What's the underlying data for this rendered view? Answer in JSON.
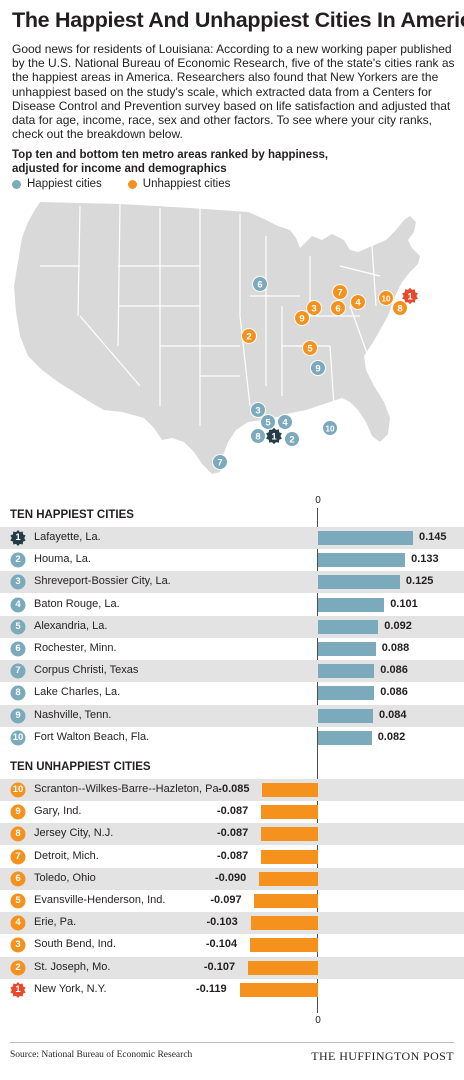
{
  "title": "The Happiest And Unhappiest Cities In America",
  "intro": "Good news for residents of Louisiana: According to a new working paper published by the U.S. National Bureau of Economic Research, five of the state's cities rank as the happiest areas in America. Researchers also found that New Yorkers are the unhappiest based on the study's scale, which extracted data from a Centers for Disease Control and Prevention survey based on life satisfaction and adjusted that data for age, income, race, sex and other factors. To see where your city ranks, check out the breakdown below.",
  "map_heading": {
    "line1": "Top ten and bottom ten metro areas ranked by happiness,",
    "line2": "adjusted for income and demographics"
  },
  "legend": {
    "happy_label": "Happiest cities",
    "unhappy_label": "Unhappiest cities",
    "happy_color": "#7aaabb",
    "unhappy_color": "#f5921e"
  },
  "colors": {
    "happy_bar": "#7aaabb",
    "unhappy_bar": "#f5921e",
    "rank_one_happy": "#243c47",
    "rank_one_unhappy": "#e8492a",
    "map_land": "#d9d9d9",
    "map_border": "#ffffff"
  },
  "chart_data": {
    "type": "bar",
    "orientation": "horizontal",
    "axis_label_top": "0",
    "axis_label_bottom": "0",
    "groups": [
      {
        "name": "TEN HAPPIEST CITIES",
        "ranks": [
          "1",
          "2",
          "3",
          "4",
          "5",
          "6",
          "7",
          "8",
          "9",
          "10"
        ],
        "categories": [
          "Lafayette, La.",
          "Houma, La.",
          "Shreveport-Bossier City, La.",
          "Baton Rouge, La.",
          "Alexandria, La.",
          "Rochester, Minn.",
          "Corpus Christi, Texas",
          "Lake Charles, La.",
          "Nashville, Tenn.",
          "Fort Walton Beach, Fla."
        ],
        "values": [
          0.145,
          0.133,
          0.125,
          0.101,
          0.092,
          0.088,
          0.086,
          0.086,
          0.084,
          0.082
        ],
        "labels": [
          "0.145",
          "0.133",
          "0.125",
          "0.101",
          "0.092",
          "0.088",
          "0.086",
          "0.086",
          "0.084",
          "0.082"
        ]
      },
      {
        "name": "TEN UNHAPPIEST CITIES",
        "ranks": [
          "10",
          "9",
          "8",
          "7",
          "6",
          "5",
          "4",
          "3",
          "2",
          "1"
        ],
        "categories": [
          "Scranton--Wilkes-Barre--Hazleton, Pa.",
          "Gary, Ind.",
          "Jersey City, N.J.",
          "Detroit, Mich.",
          "Toledo, Ohio",
          "Evansville-Henderson, Ind.",
          "Erie, Pa.",
          "South Bend, Ind.",
          "St. Joseph, Mo.",
          "New York, N.Y."
        ],
        "values": [
          -0.085,
          -0.087,
          -0.087,
          -0.087,
          -0.09,
          -0.097,
          -0.103,
          -0.104,
          -0.107,
          -0.119
        ],
        "labels": [
          "-0.085",
          "-0.087",
          "-0.087",
          "-0.087",
          "-0.090",
          "-0.097",
          "-0.103",
          "-0.104",
          "-0.107",
          "-0.119"
        ]
      }
    ]
  },
  "map_markers": {
    "happy": [
      "1",
      "2",
      "3",
      "4",
      "5",
      "6",
      "7",
      "8",
      "9",
      "10"
    ],
    "unhappy": [
      "1",
      "2",
      "3",
      "4",
      "5",
      "6",
      "7",
      "8",
      "9",
      "10"
    ]
  },
  "footer": {
    "source": "Source: National Bureau of Economic Research",
    "brand": "THE HUFFINGTON POST"
  }
}
